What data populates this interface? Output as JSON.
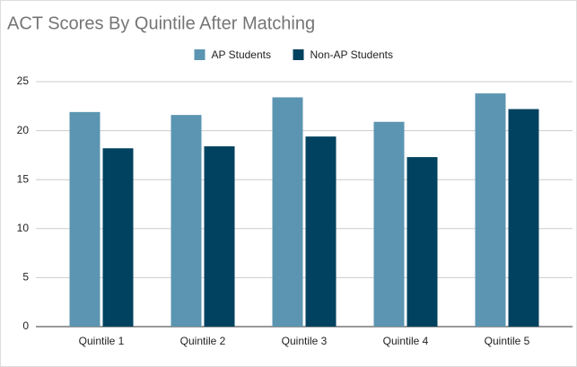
{
  "chart_data": {
    "type": "bar",
    "title": "ACT Scores By Quintile After Matching",
    "categories": [
      "Quintile 1",
      "Quintile 2",
      "Quintile 3",
      "Quintile 4",
      "Quintile 5"
    ],
    "series": [
      {
        "name": "AP Students",
        "color": "#5b95b1",
        "values": [
          21.9,
          21.6,
          23.4,
          20.9,
          23.8
        ]
      },
      {
        "name": "Non-AP Students",
        "color": "#00425f",
        "values": [
          18.2,
          18.4,
          19.4,
          17.3,
          22.2
        ]
      }
    ],
    "ylim": [
      0,
      25
    ],
    "yticks": [
      0,
      5,
      10,
      15,
      20,
      25
    ],
    "grid": true,
    "legend": "top"
  }
}
